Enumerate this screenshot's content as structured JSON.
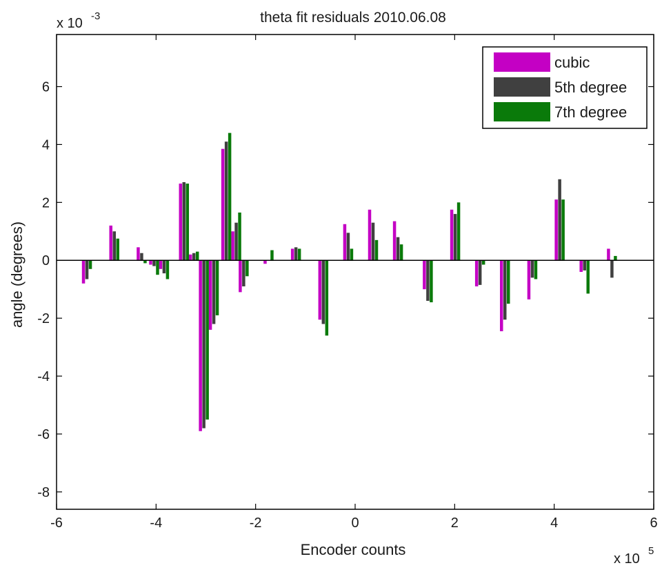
{
  "chart_data": {
    "type": "bar",
    "title": "theta fit residuals 2010.06.08",
    "xlabel": "Encoder counts",
    "ylabel": "angle (degrees)",
    "x_multiplier_label": "x 10",
    "x_multiplier_exp": "5",
    "y_multiplier_label": "x 10",
    "y_multiplier_exp": "-3",
    "xlim": [
      -6,
      6
    ],
    "ylim": [
      -8.6,
      7.8
    ],
    "x_unit_scale": "1e5",
    "y_unit_scale": "1e-3",
    "xticks": [
      -6,
      -4,
      -2,
      0,
      2,
      4,
      6
    ],
    "yticks": [
      -8,
      -6,
      -4,
      -2,
      0,
      2,
      4,
      6
    ],
    "xtick_labels": [
      "-6",
      "-4",
      "-2",
      "0",
      "2",
      "4",
      "6"
    ],
    "ytick_labels": [
      "-8",
      "-6",
      "-4",
      "-2",
      "0",
      "2",
      "4",
      "6"
    ],
    "grid": false,
    "legend_position": "top-right",
    "x": [
      -5.4,
      -4.85,
      -4.3,
      -4.05,
      -3.85,
      -3.45,
      -3.25,
      -3.05,
      -2.85,
      -2.6,
      -2.4,
      -2.25,
      -1.75,
      -1.2,
      -0.65,
      -0.15,
      0.35,
      0.85,
      1.45,
      2.0,
      2.5,
      3.0,
      3.55,
      4.1,
      4.6,
      5.15
    ],
    "series": [
      {
        "name": "cubic",
        "color": "#c400c4",
        "values": [
          -0.8,
          1.2,
          0.45,
          -0.15,
          -0.3,
          2.65,
          0.2,
          -5.9,
          -2.4,
          3.85,
          1.0,
          -1.1,
          -0.12,
          0.4,
          -2.05,
          1.25,
          1.75,
          1.35,
          -1.0,
          1.75,
          -0.9,
          -2.45,
          -1.35,
          2.1,
          -0.4,
          0.4
        ]
      },
      {
        "name": "5th degree",
        "color": "#404040",
        "values": [
          -0.65,
          1.0,
          0.25,
          -0.2,
          -0.45,
          2.7,
          0.25,
          -5.8,
          -2.2,
          4.1,
          1.3,
          -0.9,
          0.0,
          0.45,
          -2.2,
          0.95,
          1.3,
          0.8,
          -1.4,
          1.6,
          -0.85,
          -2.05,
          -0.6,
          2.8,
          -0.35,
          -0.6
        ]
      },
      {
        "name": "7th degree",
        "color": "#0a7a0a",
        "values": [
          -0.3,
          0.75,
          -0.1,
          -0.5,
          -0.65,
          2.65,
          0.3,
          -5.5,
          -1.9,
          4.4,
          1.65,
          -0.55,
          0.35,
          0.4,
          -2.6,
          0.4,
          0.7,
          0.55,
          -1.45,
          2.0,
          -0.15,
          -1.5,
          -0.65,
          2.1,
          -1.15,
          0.15
        ]
      }
    ]
  }
}
